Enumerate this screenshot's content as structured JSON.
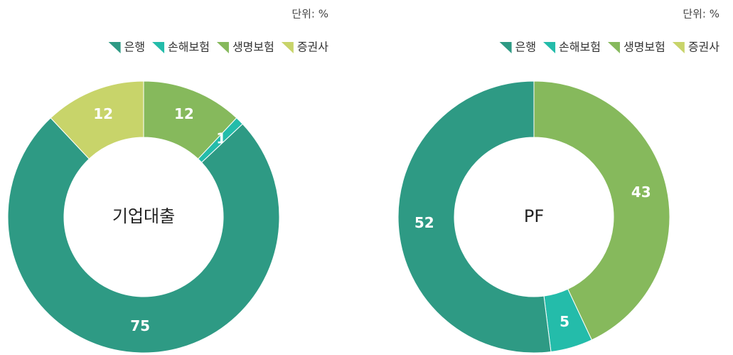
{
  "chart_data": [
    {
      "type": "pie",
      "title": "기업대출",
      "unit": "단위: %",
      "categories": [
        "은행",
        "손해보험",
        "생명보험",
        "증권사"
      ],
      "colors": [
        "#2e9a84",
        "#24bcaa",
        "#86b95c",
        "#c8d46a"
      ],
      "values": [
        75,
        1,
        12,
        12
      ]
    },
    {
      "type": "pie",
      "title": "PF",
      "unit": "단위: %",
      "categories": [
        "은행",
        "손해보험",
        "생명보험",
        "증권사"
      ],
      "colors": [
        "#2e9a84",
        "#24bcaa",
        "#86b95c",
        "#c8d46a"
      ],
      "values": [
        52,
        5,
        43,
        0
      ]
    }
  ]
}
